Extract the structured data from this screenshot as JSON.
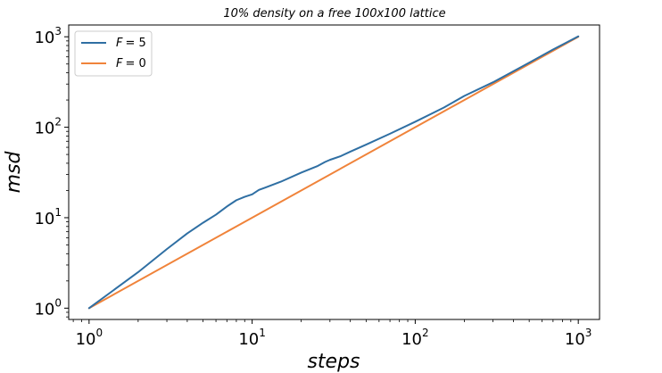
{
  "chart_data": {
    "type": "line",
    "title": "10% density on a free 100x100 lattice",
    "xlabel": "steps",
    "ylabel": "msd",
    "xscale": "log",
    "yscale": "log",
    "xlim": [
      0.75,
      1350
    ],
    "ylim": [
      0.75,
      1350
    ],
    "x_tick_labels": [
      {
        "base": "10",
        "exp": "0",
        "value": 1
      },
      {
        "base": "10",
        "exp": "1",
        "value": 10
      },
      {
        "base": "10",
        "exp": "2",
        "value": 100
      },
      {
        "base": "10",
        "exp": "3",
        "value": 1000
      }
    ],
    "y_tick_labels": [
      {
        "base": "10",
        "exp": "0",
        "value": 1
      },
      {
        "base": "10",
        "exp": "1",
        "value": 10
      },
      {
        "base": "10",
        "exp": "2",
        "value": 100
      },
      {
        "base": "10",
        "exp": "3",
        "value": 1000
      }
    ],
    "grid": false,
    "legend": "top-left",
    "series": [
      {
        "name": "F = 5",
        "legend_var": "F",
        "legend_val": "= 5",
        "color": "#2f6fa3",
        "x": [
          1,
          2,
          3,
          4,
          5,
          6,
          7,
          8,
          9,
          10,
          11,
          12,
          15,
          20,
          25,
          28,
          30,
          35,
          40,
          50,
          70,
          100,
          150,
          200,
          300,
          500,
          700,
          1000
        ],
        "y": [
          1,
          2.5,
          4.5,
          6.7,
          8.8,
          10.8,
          13.3,
          15.6,
          17,
          18.1,
          20.3,
          21.5,
          25,
          31.5,
          37,
          41.3,
          43.6,
          48,
          53.7,
          64.2,
          84.8,
          115,
          165,
          222,
          314,
          517,
          722,
          1010
        ]
      },
      {
        "name": "F = 0",
        "legend_var": "F",
        "legend_val": "= 0",
        "color": "#f0833a",
        "x": [
          1,
          1000
        ],
        "y": [
          1,
          1000
        ]
      }
    ]
  }
}
